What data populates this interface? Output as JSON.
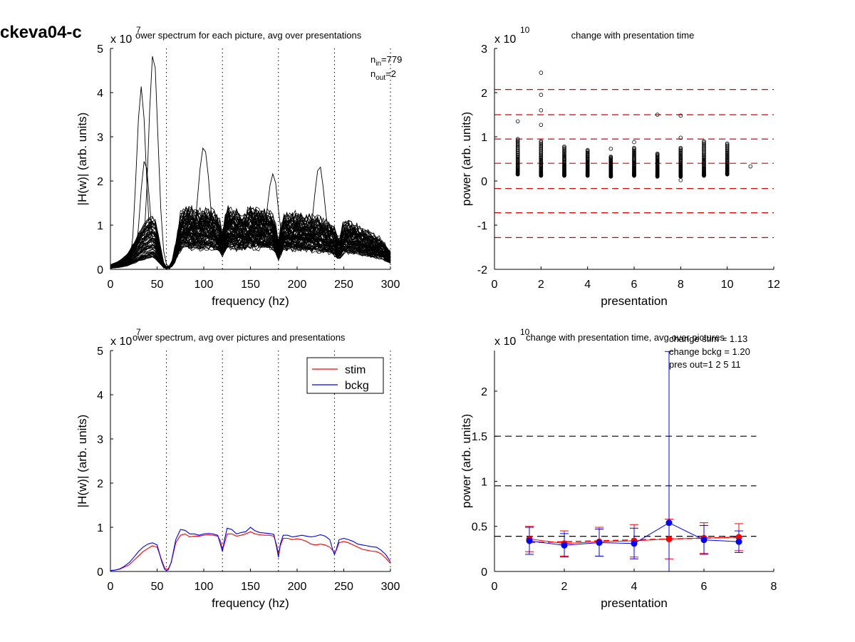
{
  "figure_label": "ckeva04-c",
  "chart_data": [
    {
      "id": "tl",
      "type": "line",
      "title": "ower spectrum for each picture, avg over presentations",
      "xlabel": "frequency (hz)",
      "ylabel": "|H(w)| (arb. units)",
      "xlim": [
        0,
        300
      ],
      "ylim": [
        0,
        5
      ],
      "xticks": [
        "0",
        "50",
        "100",
        "150",
        "200",
        "250",
        "300"
      ],
      "yticks": [
        "0",
        "1",
        "2",
        "3",
        "4",
        "5"
      ],
      "exponent_base": "x 10",
      "exponent_power": "7",
      "vlines": [
        60,
        120,
        180,
        240,
        300
      ],
      "annotations": [
        {
          "prefix": "n",
          "sub": "in",
          "suffix": "=779"
        },
        {
          "prefix": "n",
          "sub": "out",
          "suffix": "=2"
        }
      ],
      "series_count": 70,
      "mean_shape": {
        "x": [
          0,
          10,
          20,
          30,
          40,
          47,
          52,
          57,
          62,
          67,
          75,
          80,
          90,
          100,
          110,
          115,
          120,
          125,
          130,
          140,
          150,
          160,
          170,
          175,
          180,
          185,
          190,
          200,
          210,
          220,
          230,
          240,
          245,
          250,
          260,
          270,
          280,
          290,
          300
        ],
        "y": [
          0.05,
          0.1,
          0.2,
          0.4,
          0.55,
          0.6,
          0.35,
          0.08,
          0.02,
          0.15,
          0.8,
          0.9,
          0.85,
          0.85,
          0.85,
          0.8,
          0.55,
          0.9,
          0.85,
          0.8,
          0.9,
          0.85,
          0.85,
          0.8,
          0.4,
          0.8,
          0.8,
          0.8,
          0.75,
          0.75,
          0.7,
          0.6,
          0.4,
          0.7,
          0.65,
          0.6,
          0.5,
          0.45,
          0.25
        ]
      },
      "highlight_peaks": [
        {
          "x": 33,
          "y": 4.1
        },
        {
          "x": 46,
          "y": 4.95
        },
        {
          "x": 37,
          "y": 2.5
        },
        {
          "x": 100,
          "y": 2.8
        },
        {
          "x": 174,
          "y": 2.15
        },
        {
          "x": 224,
          "y": 2.3
        }
      ]
    },
    {
      "id": "tr",
      "type": "scatter",
      "title": "change with presentation time",
      "xlabel": "presentation",
      "ylabel": "power (arb. units)",
      "xlim": [
        0,
        12
      ],
      "ylim": [
        -2,
        3
      ],
      "xticks": [
        "0",
        "2",
        "4",
        "6",
        "8",
        "10",
        "12"
      ],
      "yticks": [
        "-2",
        "-1",
        "0",
        "1",
        "2",
        "3"
      ],
      "exponent_base": "x 10",
      "exponent_power": "10",
      "hlines": [
        2.07,
        1.5,
        0.95,
        0.4,
        -0.17,
        -0.72,
        -1.28
      ],
      "clusters": [
        {
          "x": 1,
          "low": 0.15,
          "high": 0.95
        },
        {
          "x": 2,
          "low": 0.12,
          "high": 0.9
        },
        {
          "x": 3,
          "low": 0.12,
          "high": 0.78
        },
        {
          "x": 4,
          "low": 0.12,
          "high": 0.7
        },
        {
          "x": 5,
          "low": 0.1,
          "high": 0.55
        },
        {
          "x": 6,
          "low": 0.12,
          "high": 0.75
        },
        {
          "x": 7,
          "low": 0.1,
          "high": 0.62
        },
        {
          "x": 8,
          "low": 0.1,
          "high": 0.75
        },
        {
          "x": 9,
          "low": 0.12,
          "high": 0.9
        },
        {
          "x": 10,
          "low": 0.15,
          "high": 0.85
        }
      ],
      "outliers": [
        {
          "x": 1,
          "y": 1.35
        },
        {
          "x": 2,
          "y": 2.45
        },
        {
          "x": 2,
          "y": 1.95
        },
        {
          "x": 2,
          "y": 1.6
        },
        {
          "x": 2,
          "y": 1.27
        },
        {
          "x": 5,
          "y": 0.73
        },
        {
          "x": 6,
          "y": 0.88
        },
        {
          "x": 7,
          "y": 1.5
        },
        {
          "x": 8,
          "y": 1.48
        },
        {
          "x": 8,
          "y": 0.98
        },
        {
          "x": 8,
          "y": 0.02
        },
        {
          "x": 11,
          "y": 0.33
        }
      ]
    },
    {
      "id": "bl",
      "type": "line",
      "title": "ower spectrum, avg over pictures and presentations",
      "xlabel": "frequency (hz)",
      "ylabel": "|H(w)| (arb. units)",
      "xlim": [
        0,
        300
      ],
      "ylim": [
        0,
        5
      ],
      "xticks": [
        "0",
        "50",
        "100",
        "150",
        "200",
        "250",
        "300"
      ],
      "yticks": [
        "0",
        "1",
        "2",
        "3",
        "4",
        "5"
      ],
      "exponent_base": "x 10",
      "exponent_power": "7",
      "vlines": [
        60,
        120,
        180,
        240,
        300
      ],
      "legend": {
        "position": "top-right",
        "entries": [
          "stim",
          "bckg"
        ]
      },
      "series": [
        {
          "name": "stim",
          "color": "#ff0000",
          "x": [
            0,
            5,
            10,
            15,
            20,
            25,
            30,
            35,
            40,
            45,
            50,
            55,
            58,
            60,
            62,
            65,
            70,
            75,
            80,
            85,
            90,
            95,
            100,
            105,
            110,
            115,
            118,
            120,
            122,
            125,
            130,
            135,
            140,
            145,
            150,
            155,
            160,
            165,
            170,
            175,
            178,
            180,
            182,
            185,
            190,
            195,
            200,
            205,
            210,
            215,
            220,
            225,
            230,
            235,
            238,
            240,
            242,
            245,
            250,
            255,
            260,
            265,
            270,
            275,
            280,
            285,
            290,
            295,
            300
          ],
          "y": [
            0.02,
            0.03,
            0.05,
            0.1,
            0.15,
            0.25,
            0.35,
            0.45,
            0.52,
            0.58,
            0.55,
            0.25,
            0.08,
            0.05,
            0.06,
            0.2,
            0.65,
            0.82,
            0.85,
            0.78,
            0.8,
            0.8,
            0.82,
            0.83,
            0.82,
            0.8,
            0.68,
            0.5,
            0.62,
            0.85,
            0.85,
            0.8,
            0.82,
            0.85,
            0.9,
            0.85,
            0.83,
            0.82,
            0.82,
            0.8,
            0.6,
            0.4,
            0.58,
            0.75,
            0.75,
            0.72,
            0.74,
            0.72,
            0.68,
            0.62,
            0.6,
            0.62,
            0.6,
            0.55,
            0.48,
            0.42,
            0.48,
            0.65,
            0.68,
            0.65,
            0.6,
            0.55,
            0.5,
            0.48,
            0.46,
            0.45,
            0.4,
            0.3,
            0.18
          ]
        },
        {
          "name": "bckg",
          "color": "#0000ff",
          "x": [
            0,
            5,
            10,
            15,
            20,
            25,
            30,
            35,
            40,
            45,
            50,
            55,
            58,
            60,
            62,
            65,
            70,
            75,
            80,
            85,
            90,
            95,
            100,
            105,
            110,
            115,
            118,
            120,
            122,
            125,
            130,
            135,
            140,
            145,
            150,
            155,
            160,
            165,
            170,
            175,
            178,
            180,
            182,
            185,
            190,
            195,
            200,
            205,
            210,
            215,
            220,
            225,
            230,
            235,
            238,
            240,
            242,
            245,
            250,
            255,
            260,
            265,
            270,
            275,
            280,
            285,
            290,
            295,
            300
          ],
          "y": [
            0.02,
            0.03,
            0.06,
            0.12,
            0.2,
            0.32,
            0.45,
            0.55,
            0.62,
            0.65,
            0.6,
            0.22,
            0.05,
            0.02,
            0.04,
            0.2,
            0.72,
            0.95,
            0.93,
            0.85,
            0.85,
            0.82,
            0.85,
            0.86,
            0.85,
            0.82,
            0.6,
            0.45,
            0.7,
            0.98,
            0.95,
            0.85,
            0.88,
            0.9,
            1.0,
            0.92,
            0.88,
            0.87,
            0.86,
            0.84,
            0.55,
            0.32,
            0.62,
            0.82,
            0.82,
            0.78,
            0.8,
            0.82,
            0.8,
            0.78,
            0.8,
            0.83,
            0.8,
            0.72,
            0.5,
            0.38,
            0.5,
            0.72,
            0.75,
            0.72,
            0.68,
            0.62,
            0.6,
            0.58,
            0.56,
            0.55,
            0.48,
            0.38,
            0.22
          ]
        }
      ]
    },
    {
      "id": "br",
      "type": "line",
      "title": "change with presentation time, avg over pictures",
      "xlabel": "presentation",
      "ylabel": "power (arb. units)",
      "xlim": [
        0,
        8
      ],
      "ylim": [
        0,
        2.45
      ],
      "xticks": [
        "0",
        "2",
        "4",
        "6",
        "8"
      ],
      "yticks": [
        "0",
        "0.5",
        "1",
        "1.5",
        "2"
      ],
      "ytick_values": [
        0,
        0.5,
        1,
        1.5,
        2
      ],
      "exponent_base": "x 10",
      "exponent_power": "10",
      "hlines": [
        1.5,
        0.95,
        0.39
      ],
      "annotations": [
        "change stim = 1.13",
        "change bckg = 1.20",
        "pres out=1 2 5 11"
      ],
      "series": [
        {
          "name": "stim",
          "color": "#ff0000",
          "x": [
            1,
            2,
            3,
            4,
            5,
            6,
            7
          ],
          "y": [
            0.36,
            0.31,
            0.33,
            0.34,
            0.36,
            0.37,
            0.38
          ],
          "err": [
            0.14,
            0.14,
            0.16,
            0.18,
            0.22,
            0.17,
            0.15
          ]
        },
        {
          "name": "bckg",
          "color": "#0000ff",
          "x": [
            1,
            2,
            3,
            4,
            5,
            6,
            7
          ],
          "y": [
            0.34,
            0.29,
            0.32,
            0.31,
            0.54,
            0.35,
            0.33
          ],
          "err": [
            0.15,
            0.13,
            0.15,
            0.17,
            1.9,
            0.16,
            0.12
          ]
        }
      ],
      "fit": {
        "color": "#ff0000",
        "style": "dashed",
        "x": [
          1,
          7
        ],
        "y": [
          0.32,
          0.38
        ]
      }
    }
  ]
}
